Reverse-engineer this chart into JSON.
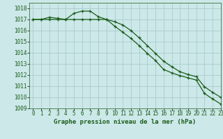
{
  "title": "Graphe pression niveau de la mer (hPa)",
  "bg_color": "#cce8e8",
  "grid_color": "#aacccc",
  "line_color": "#1a5c1a",
  "marker": "+",
  "xlim": [
    -0.5,
    23
  ],
  "ylim": [
    1009,
    1018.5
  ],
  "xticks": [
    0,
    1,
    2,
    3,
    4,
    5,
    6,
    7,
    8,
    9,
    10,
    11,
    12,
    13,
    14,
    15,
    16,
    17,
    18,
    19,
    20,
    21,
    22,
    23
  ],
  "yticks": [
    1009,
    1010,
    1011,
    1012,
    1013,
    1014,
    1015,
    1016,
    1017,
    1018
  ],
  "series1_x": [
    0,
    1,
    2,
    3,
    4,
    5,
    6,
    7,
    8,
    9,
    10,
    11,
    12,
    13,
    14,
    15,
    16,
    17,
    18,
    19,
    20,
    21,
    22,
    23
  ],
  "series1_y": [
    1017.0,
    1017.0,
    1017.2,
    1017.1,
    1017.0,
    1017.55,
    1017.75,
    1017.75,
    1017.25,
    1017.0,
    1016.4,
    1015.85,
    1015.3,
    1014.65,
    1013.95,
    1013.3,
    1012.5,
    1012.2,
    1011.95,
    1011.75,
    1011.55,
    1010.35,
    1009.85,
    1009.4
  ],
  "series2_x": [
    0,
    1,
    2,
    3,
    4,
    5,
    6,
    7,
    8,
    9,
    10,
    11,
    12,
    13,
    14,
    15,
    16,
    17,
    18,
    19,
    20,
    21,
    22,
    23
  ],
  "series2_y": [
    1017.0,
    1017.0,
    1017.0,
    1017.0,
    1017.0,
    1017.0,
    1017.0,
    1017.0,
    1017.0,
    1017.0,
    1016.8,
    1016.5,
    1016.0,
    1015.35,
    1014.65,
    1013.95,
    1013.25,
    1012.75,
    1012.3,
    1012.05,
    1011.85,
    1010.95,
    1010.45,
    1010.0
  ],
  "tick_fontsize": 5.5,
  "xlabel_fontsize": 6.5
}
